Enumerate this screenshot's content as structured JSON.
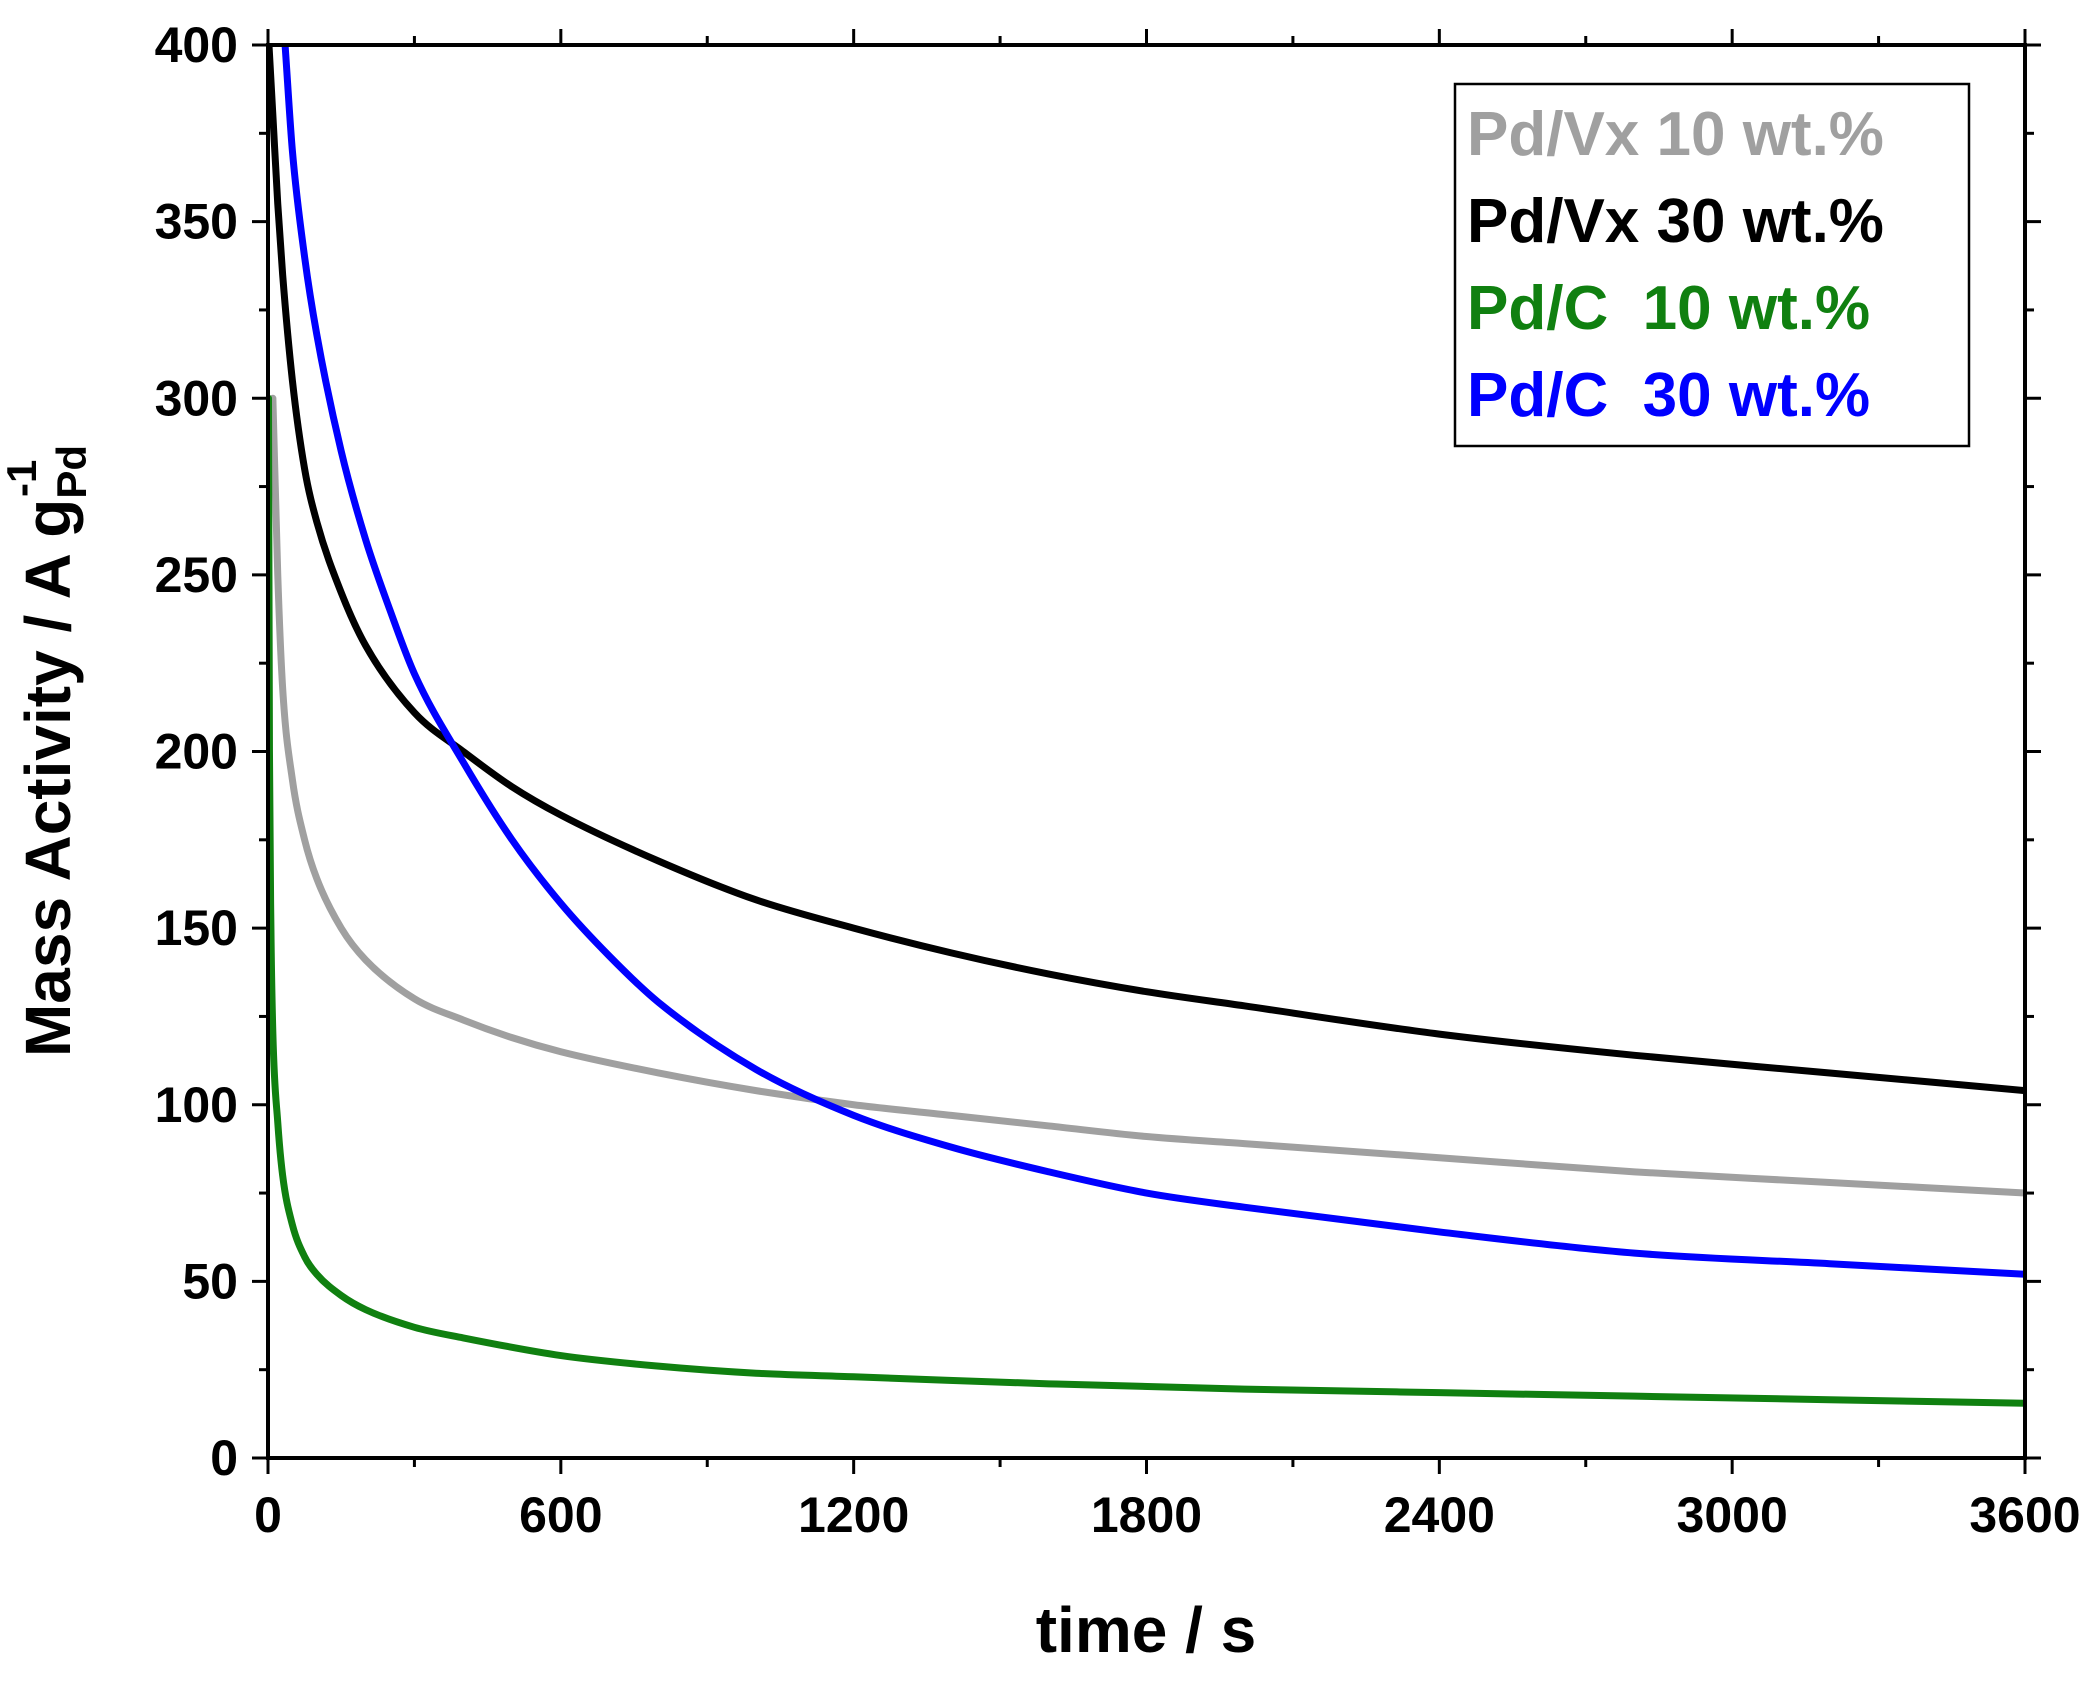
{
  "chart_data": {
    "type": "line",
    "title": "",
    "xlabel": "time / s",
    "ylabel": {
      "main": "Mass Activity / A g",
      "subscript": "Pd",
      "superscript": "-1"
    },
    "xlim": [
      0,
      3600
    ],
    "ylim": [
      0,
      400
    ],
    "xticks": [
      0,
      600,
      1200,
      1800,
      2400,
      3000,
      3600
    ],
    "yticks": [
      0,
      50,
      100,
      150,
      200,
      250,
      300,
      350,
      400
    ],
    "xticks_minor": [
      300,
      900,
      1500,
      2100,
      2700,
      3300
    ],
    "yticks_minor": [
      25,
      75,
      125,
      175,
      225,
      275,
      325,
      375
    ],
    "grid": false,
    "legend_position": "top-right",
    "series": [
      {
        "name": "Pd/Vx 10 wt.%",
        "color": "#a0a0a0",
        "x": [
          10,
          20,
          30,
          50,
          75,
          100,
          150,
          200,
          300,
          400,
          500,
          600,
          800,
          1000,
          1200,
          1400,
          1600,
          1800,
          2000,
          2400,
          2800,
          3200,
          3600
        ],
        "y": [
          300,
          250,
          218,
          192,
          175,
          164,
          150,
          141,
          130,
          124,
          119,
          115,
          109,
          104,
          100,
          97,
          94,
          91,
          89,
          85,
          81,
          78,
          75
        ]
      },
      {
        "name": "Pd/Vx 30 wt.%",
        "color": "#000000",
        "x": [
          2,
          10,
          20,
          30,
          50,
          75,
          100,
          150,
          200,
          300,
          400,
          500,
          600,
          800,
          1000,
          1200,
          1400,
          1600,
          1800,
          2000,
          2400,
          2800,
          3200,
          3600
        ],
        "y": [
          400,
          380,
          355,
          335,
          305,
          280,
          265,
          245,
          230,
          211,
          200,
          190,
          182,
          169,
          158,
          150,
          143,
          137,
          132,
          128,
          120,
          114,
          109,
          104
        ]
      },
      {
        "name": "Pd/C  10 wt.%",
        "color": "#108010",
        "x": [
          1,
          3,
          6,
          10,
          20,
          30,
          50,
          75,
          100,
          150,
          200,
          300,
          400,
          600,
          800,
          1000,
          1200,
          1600,
          2000,
          2400,
          2800,
          3200,
          3600
        ],
        "y": [
          300,
          200,
          150,
          120,
          95,
          80,
          66,
          57,
          52,
          46,
          42,
          37,
          34,
          29,
          26,
          24,
          23,
          21,
          19.5,
          18.5,
          17.5,
          16.5,
          15.5
        ]
      },
      {
        "name": "Pd/C  30 wt.%",
        "color": "#0000ff",
        "x": [
          35,
          50,
          75,
          100,
          150,
          200,
          250,
          300,
          400,
          500,
          600,
          700,
          800,
          1000,
          1200,
          1400,
          1600,
          1800,
          2000,
          2400,
          2800,
          3200,
          3600
        ],
        "y": [
          400,
          370,
          340,
          318,
          285,
          260,
          240,
          222,
          197,
          175,
          157,
          142,
          129,
          110,
          97,
          88,
          81,
          75,
          71,
          64,
          58,
          55,
          52
        ]
      }
    ]
  }
}
